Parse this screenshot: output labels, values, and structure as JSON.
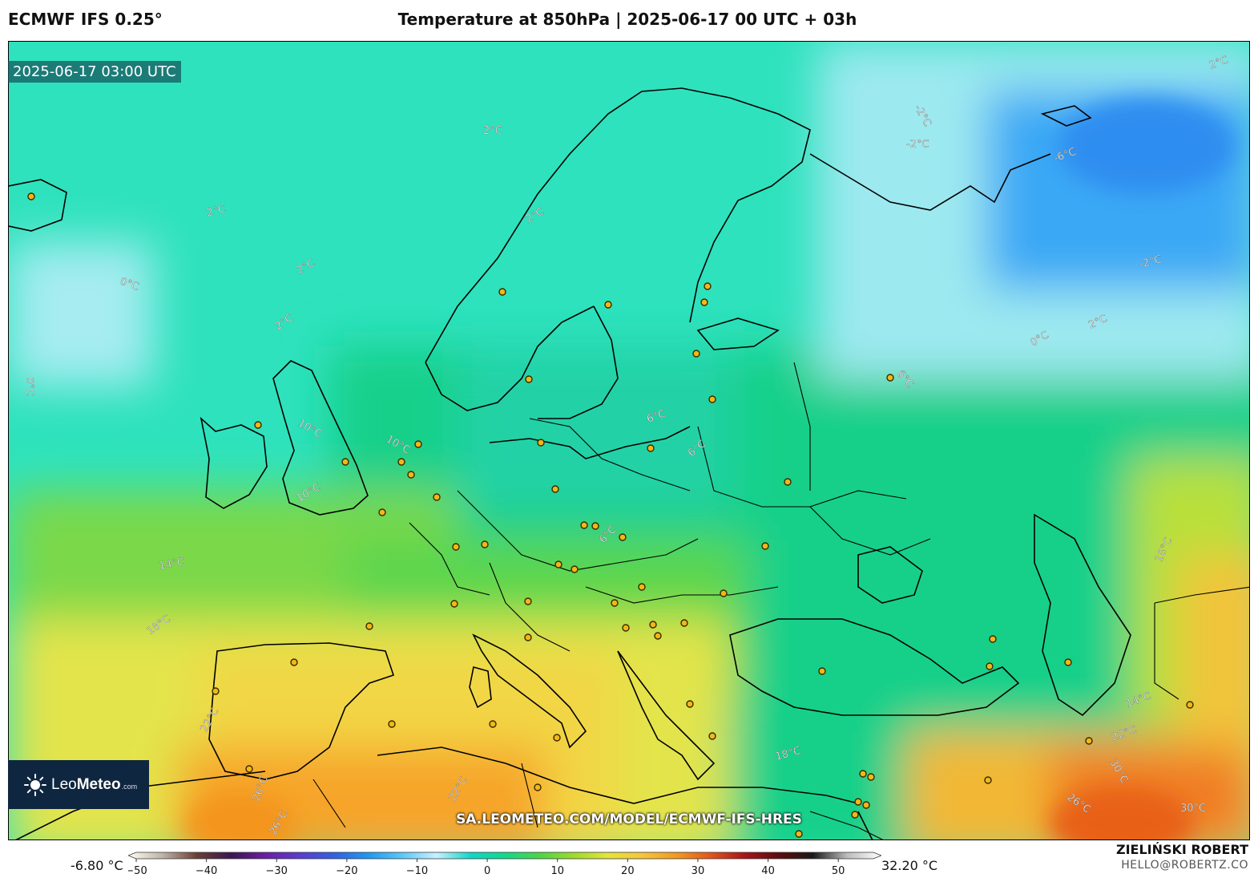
{
  "header": {
    "model": "ECMWF IFS 0.25°",
    "title": "Temperature at 850hPa | 2025-06-17 00 UTC + 03h"
  },
  "map": {
    "valid_time": "2025-06-17 03:00 UTC",
    "source_url": "SA.LEOMETEO.COM/MODEL/ECMWF-IFS-HRES",
    "isotherm_labels": [
      "-2°C",
      "-2°C",
      "-6°C",
      "-2°C",
      "0°C",
      "2°C",
      "2°C",
      "2°C",
      "0°C",
      "2°C",
      "0°C",
      "2°C",
      "2°C",
      "6°C",
      "6°C",
      "6°C",
      "6°C",
      "10°C",
      "10°C",
      "10°C",
      "14°C",
      "18°C",
      "22°C",
      "26°C",
      "26°C",
      "22°C",
      "18°C",
      "22°C",
      "30°C",
      "26°C",
      "30°C",
      "14°C",
      "18°C",
      "2°C"
    ]
  },
  "logo": {
    "brand_regular": "Leo",
    "brand_bold": "Meteo",
    "domain": ".com"
  },
  "colorbar": {
    "min_label": "-6.80 °C",
    "max_label": "32.20 °C",
    "ticks": [
      "−50",
      "−40",
      "−30",
      "−20",
      "−10",
      "0",
      "10",
      "20",
      "30",
      "40",
      "50"
    ],
    "tick_values": [
      -50,
      -40,
      -30,
      -20,
      -10,
      0,
      10,
      20,
      30,
      40,
      50
    ],
    "range": [
      -50,
      55
    ],
    "colors": [
      "#fffef2",
      "#bfb3a7",
      "#6b3f36",
      "#3c1650",
      "#6a1fa3",
      "#5b3ccf",
      "#3360e3",
      "#1f97f2",
      "#5ac8fa",
      "#c8f0ff",
      "#10d7c9",
      "#12d98b",
      "#4bd649",
      "#9cdc2a",
      "#e5e43a",
      "#f7c63a",
      "#f39a20",
      "#e2561a",
      "#a8141a",
      "#5c0c10",
      "#1a1a1a",
      "#bdbdbd",
      "#ffffff"
    ]
  },
  "footer": {
    "author": "ZIELIŃSKI ROBERT",
    "email": "HELLO@ROBERTZ.CO"
  }
}
